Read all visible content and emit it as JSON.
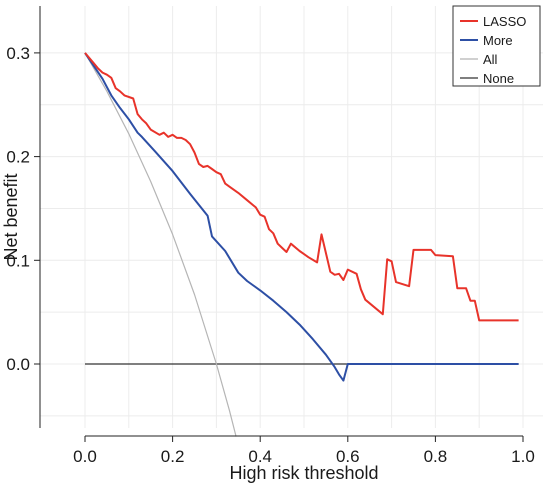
{
  "chart_data": {
    "type": "line",
    "xlabel": "High risk threshold",
    "ylabel": "Net benefit",
    "xlim": [
      0,
      1.0
    ],
    "ylim": [
      -0.065,
      0.33
    ],
    "xticks": [
      "0.0",
      "0.2",
      "0.4",
      "0.6",
      "0.8",
      "1.0"
    ],
    "yticks": [
      "0.0",
      "0.1",
      "0.2",
      "0.3"
    ],
    "grid": true,
    "legend_position": "top-right",
    "series": [
      {
        "name": "LASSO",
        "color": "#e8332a",
        "points": [
          [
            0.0,
            0.3
          ],
          [
            0.02,
            0.29
          ],
          [
            0.03,
            0.285
          ],
          [
            0.04,
            0.281
          ],
          [
            0.05,
            0.279
          ],
          [
            0.06,
            0.276
          ],
          [
            0.07,
            0.266
          ],
          [
            0.08,
            0.263
          ],
          [
            0.09,
            0.259
          ],
          [
            0.11,
            0.256
          ],
          [
            0.12,
            0.241
          ],
          [
            0.13,
            0.236
          ],
          [
            0.14,
            0.232
          ],
          [
            0.15,
            0.226
          ],
          [
            0.17,
            0.221
          ],
          [
            0.18,
            0.223
          ],
          [
            0.19,
            0.219
          ],
          [
            0.2,
            0.221
          ],
          [
            0.21,
            0.218
          ],
          [
            0.22,
            0.218
          ],
          [
            0.23,
            0.216
          ],
          [
            0.24,
            0.212
          ],
          [
            0.25,
            0.204
          ],
          [
            0.26,
            0.193
          ],
          [
            0.27,
            0.19
          ],
          [
            0.28,
            0.191
          ],
          [
            0.29,
            0.188
          ],
          [
            0.3,
            0.185
          ],
          [
            0.31,
            0.183
          ],
          [
            0.32,
            0.174
          ],
          [
            0.33,
            0.171
          ],
          [
            0.35,
            0.165
          ],
          [
            0.37,
            0.158
          ],
          [
            0.39,
            0.151
          ],
          [
            0.4,
            0.144
          ],
          [
            0.41,
            0.142
          ],
          [
            0.42,
            0.13
          ],
          [
            0.43,
            0.126
          ],
          [
            0.44,
            0.116
          ],
          [
            0.45,
            0.112
          ],
          [
            0.46,
            0.108
          ],
          [
            0.47,
            0.116
          ],
          [
            0.49,
            0.109
          ],
          [
            0.5,
            0.106
          ],
          [
            0.51,
            0.103
          ],
          [
            0.53,
            0.098
          ],
          [
            0.54,
            0.125
          ],
          [
            0.55,
            0.107
          ],
          [
            0.56,
            0.089
          ],
          [
            0.57,
            0.086
          ],
          [
            0.58,
            0.087
          ],
          [
            0.59,
            0.081
          ],
          [
            0.6,
            0.091
          ],
          [
            0.62,
            0.087
          ],
          [
            0.63,
            0.072
          ],
          [
            0.64,
            0.062
          ],
          [
            0.68,
            0.048
          ],
          [
            0.69,
            0.101
          ],
          [
            0.7,
            0.099
          ],
          [
            0.71,
            0.079
          ],
          [
            0.74,
            0.075
          ],
          [
            0.75,
            0.11
          ],
          [
            0.79,
            0.11
          ],
          [
            0.8,
            0.105
          ],
          [
            0.84,
            0.104
          ],
          [
            0.85,
            0.073
          ],
          [
            0.87,
            0.073
          ],
          [
            0.88,
            0.061
          ],
          [
            0.89,
            0.061
          ],
          [
            0.9,
            0.042
          ],
          [
            0.99,
            0.042
          ]
        ]
      },
      {
        "name": "More",
        "color": "#2d4fa5",
        "points": [
          [
            0.0,
            0.3
          ],
          [
            0.04,
            0.275
          ],
          [
            0.06,
            0.259
          ],
          [
            0.08,
            0.247
          ],
          [
            0.1,
            0.236
          ],
          [
            0.12,
            0.223
          ],
          [
            0.13,
            0.219
          ],
          [
            0.16,
            0.205
          ],
          [
            0.2,
            0.186
          ],
          [
            0.24,
            0.164
          ],
          [
            0.28,
            0.143
          ],
          [
            0.29,
            0.123
          ],
          [
            0.32,
            0.109
          ],
          [
            0.35,
            0.088
          ],
          [
            0.37,
            0.08
          ],
          [
            0.4,
            0.071
          ],
          [
            0.43,
            0.061
          ],
          [
            0.46,
            0.05
          ],
          [
            0.49,
            0.038
          ],
          [
            0.52,
            0.024
          ],
          [
            0.55,
            0.009
          ],
          [
            0.57,
            -0.003
          ],
          [
            0.58,
            -0.01
          ],
          [
            0.59,
            -0.016
          ],
          [
            0.6,
            0.0
          ],
          [
            0.99,
            0.0
          ]
        ]
      },
      {
        "name": "All",
        "color": "#b5b5b5",
        "points": [
          [
            0.0,
            0.3
          ],
          [
            0.05,
            0.263
          ],
          [
            0.1,
            0.222
          ],
          [
            0.15,
            0.176
          ],
          [
            0.2,
            0.125
          ],
          [
            0.25,
            0.067
          ],
          [
            0.3,
            0.0
          ],
          [
            0.33,
            -0.045
          ],
          [
            0.345,
            -0.07
          ]
        ]
      },
      {
        "name": "None",
        "color": "#333333",
        "points": [
          [
            0.0,
            0.0
          ],
          [
            0.99,
            0.0
          ]
        ]
      }
    ]
  }
}
